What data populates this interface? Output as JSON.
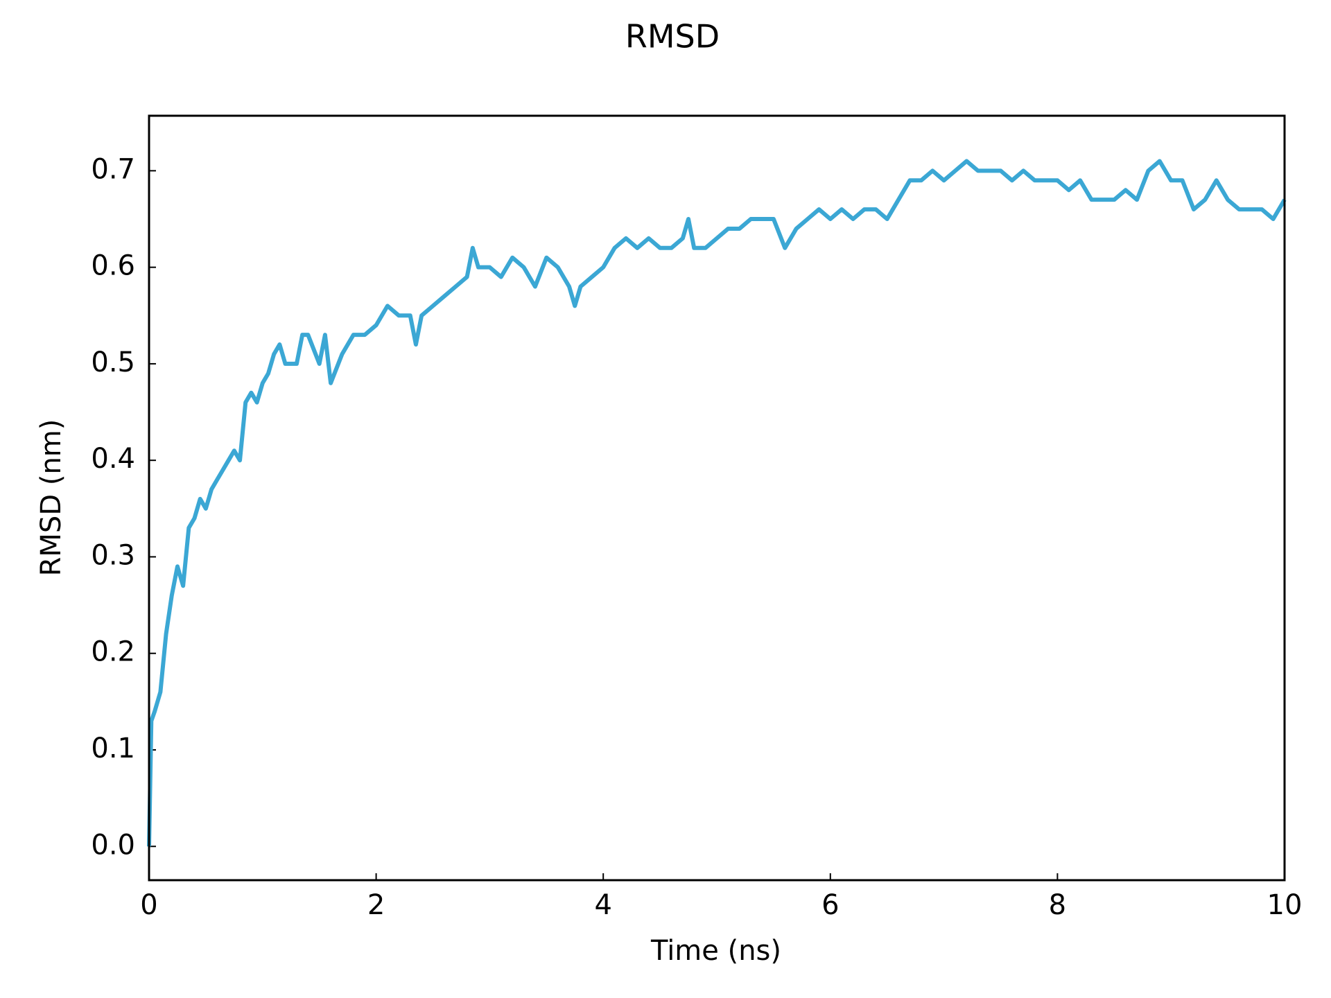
{
  "chart_data": {
    "type": "line",
    "title": "RMSD",
    "x_label": "Time (ns)",
    "y_label": "RMSD (nm)",
    "x": [
      0,
      0.02,
      0.05,
      0.1,
      0.15,
      0.2,
      0.25,
      0.3,
      0.35,
      0.4,
      0.45,
      0.5,
      0.55,
      0.6,
      0.65,
      0.7,
      0.75,
      0.8,
      0.85,
      0.9,
      0.95,
      1.0,
      1.05,
      1.1,
      1.15,
      1.2,
      1.3,
      1.35,
      1.4,
      1.5,
      1.55,
      1.6,
      1.7,
      1.8,
      1.9,
      2.0,
      2.1,
      2.2,
      2.3,
      2.35,
      2.4,
      2.5,
      2.6,
      2.7,
      2.8,
      2.85,
      2.9,
      3.0,
      3.1,
      3.2,
      3.3,
      3.4,
      3.5,
      3.6,
      3.7,
      3.75,
      3.8,
      3.9,
      4.0,
      4.1,
      4.2,
      4.3,
      4.4,
      4.5,
      4.6,
      4.7,
      4.75,
      4.8,
      4.9,
      5.0,
      5.1,
      5.2,
      5.3,
      5.4,
      5.5,
      5.6,
      5.7,
      5.8,
      5.9,
      6.0,
      6.1,
      6.2,
      6.3,
      6.4,
      6.5,
      6.6,
      6.7,
      6.8,
      6.9,
      7.0,
      7.1,
      7.2,
      7.3,
      7.4,
      7.5,
      7.6,
      7.7,
      7.8,
      7.9,
      8.0,
      8.1,
      8.2,
      8.3,
      8.4,
      8.5,
      8.6,
      8.7,
      8.8,
      8.9,
      9.0,
      9.1,
      9.2,
      9.3,
      9.4,
      9.5,
      9.6,
      9.7,
      9.8,
      9.9,
      10.0
    ],
    "series": [
      {
        "name": "RMSD",
        "color": "#3ba7d4",
        "values": [
          0.0,
          0.13,
          0.14,
          0.16,
          0.22,
          0.26,
          0.29,
          0.27,
          0.33,
          0.34,
          0.36,
          0.35,
          0.37,
          0.38,
          0.39,
          0.4,
          0.41,
          0.4,
          0.46,
          0.47,
          0.46,
          0.48,
          0.49,
          0.51,
          0.52,
          0.5,
          0.5,
          0.53,
          0.53,
          0.5,
          0.53,
          0.48,
          0.51,
          0.53,
          0.53,
          0.54,
          0.56,
          0.55,
          0.55,
          0.52,
          0.55,
          0.56,
          0.57,
          0.58,
          0.59,
          0.62,
          0.6,
          0.6,
          0.59,
          0.61,
          0.6,
          0.58,
          0.61,
          0.6,
          0.58,
          0.56,
          0.58,
          0.59,
          0.6,
          0.62,
          0.63,
          0.62,
          0.63,
          0.62,
          0.62,
          0.63,
          0.65,
          0.62,
          0.62,
          0.63,
          0.64,
          0.64,
          0.65,
          0.65,
          0.65,
          0.62,
          0.64,
          0.65,
          0.66,
          0.65,
          0.66,
          0.65,
          0.66,
          0.66,
          0.65,
          0.67,
          0.69,
          0.69,
          0.7,
          0.69,
          0.7,
          0.71,
          0.7,
          0.7,
          0.7,
          0.69,
          0.7,
          0.69,
          0.69,
          0.69,
          0.68,
          0.69,
          0.67,
          0.67,
          0.67,
          0.68,
          0.67,
          0.7,
          0.71,
          0.69,
          0.69,
          0.66,
          0.67,
          0.69,
          0.67,
          0.66,
          0.66,
          0.66,
          0.65,
          0.67
        ]
      }
    ],
    "xlim": [
      0,
      10
    ],
    "xticks": [
      0,
      2,
      4,
      6,
      8,
      10
    ],
    "ylim": [
      -0.035,
      0.757
    ],
    "yticks": [
      {
        "value": 0,
        "label": "0.0"
      },
      0.1,
      0.2,
      0.3,
      0.4,
      0.5,
      0.6,
      0.7
    ],
    "grid": false
  }
}
